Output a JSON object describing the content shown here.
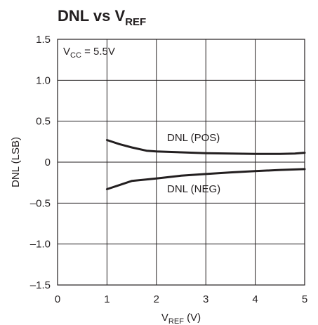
{
  "chart_data": {
    "type": "line",
    "title": "DNL vs V",
    "title_subscript": "REF",
    "xlabel": "V",
    "xlabel_subscript": "REF",
    "xlabel_suffix": " (V)",
    "ylabel": "DNL (LSB)",
    "xlim": [
      0,
      5
    ],
    "ylim": [
      -1.5,
      1.5
    ],
    "x_ticks": [
      "0",
      "1",
      "2",
      "3",
      "4",
      "5"
    ],
    "y_ticks": [
      "1.5",
      "1.0",
      "0.5",
      "0",
      "–0.5",
      "–1.0",
      "–1.5"
    ],
    "grid": true,
    "condition": {
      "prefix": "V",
      "subscript": "CC",
      "suffix": " = 5.5V"
    },
    "series": [
      {
        "name": "DNL (POS)",
        "x": [
          1.0,
          1.25,
          1.5,
          1.8,
          2.0,
          2.5,
          3.0,
          3.5,
          4.0,
          4.5,
          4.8,
          5.0
        ],
        "y": [
          0.27,
          0.22,
          0.18,
          0.14,
          0.13,
          0.12,
          0.11,
          0.105,
          0.1,
          0.1,
          0.105,
          0.115
        ]
      },
      {
        "name": "DNL (NEG)",
        "x": [
          1.0,
          1.25,
          1.5,
          2.0,
          2.5,
          3.0,
          3.5,
          4.0,
          4.5,
          5.0
        ],
        "y": [
          -0.33,
          -0.28,
          -0.23,
          -0.2,
          -0.165,
          -0.145,
          -0.125,
          -0.11,
          -0.095,
          -0.085
        ]
      }
    ],
    "line_color": "#231f20",
    "grid_color": "#231f20"
  }
}
